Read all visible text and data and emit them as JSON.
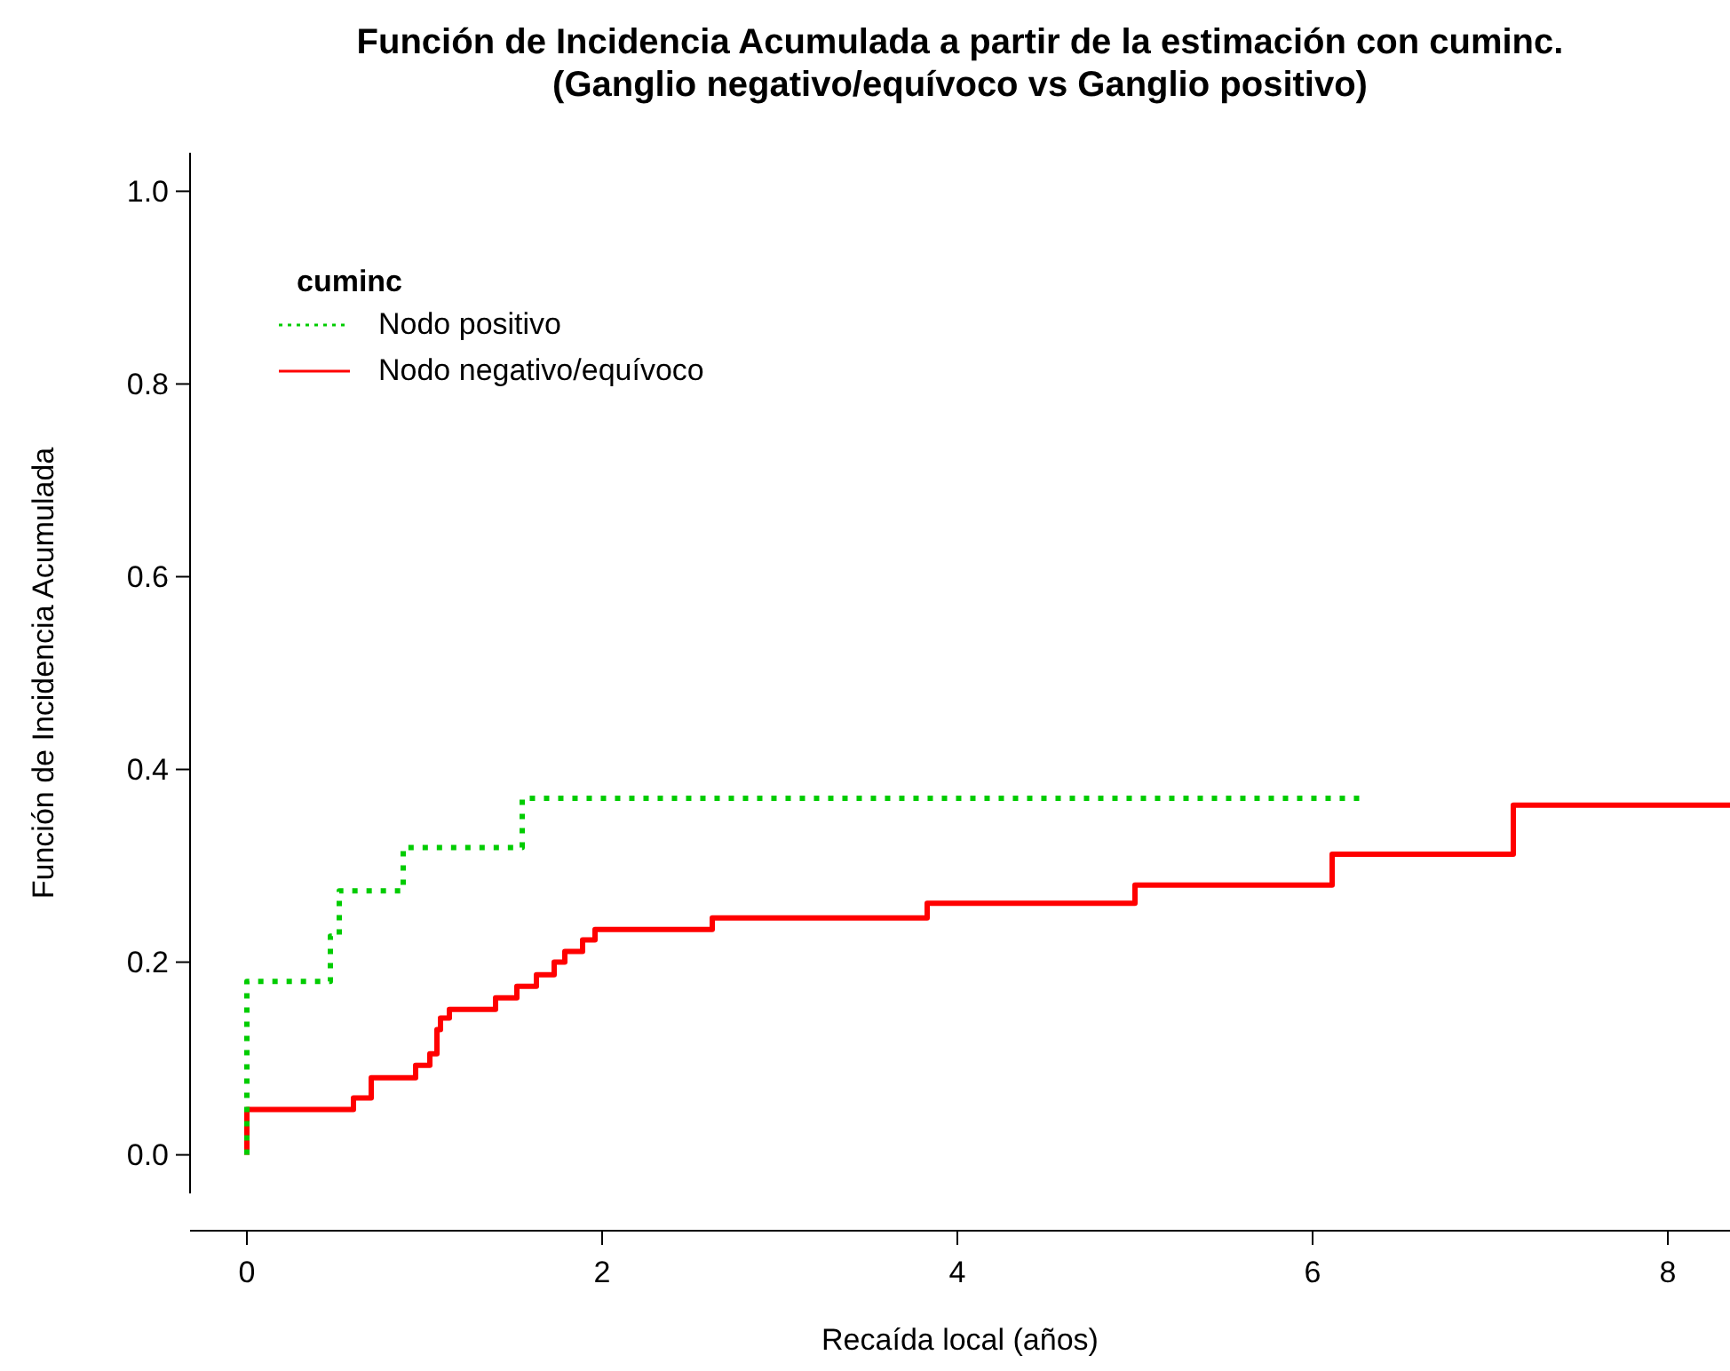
{
  "chart_data": {
    "type": "step",
    "title": "Función de Incidencia Acumulada a partir de la estimación con cuminc.\n(Ganglio negativo/equívoco vs Ganglio positivo)",
    "xlabel": "Recaída local (años)",
    "ylabel": "Función de Incidencia Acumulada",
    "legend_title": "cuminc",
    "legend": "top left",
    "grid": false,
    "xlim": [
      -0.32,
      8.35
    ],
    "ylim": [
      -0.04,
      1.04
    ],
    "xticks": [
      0,
      2,
      4,
      6,
      8
    ],
    "yticks": [
      {
        "value": 0,
        "label": "0.0"
      },
      {
        "value": 0.2,
        "label": "0.2"
      },
      {
        "value": 0.4,
        "label": "0.4"
      },
      {
        "value": 0.6,
        "label": "0.6"
      },
      {
        "value": 0.8,
        "label": "0.8"
      },
      {
        "value": 1,
        "label": "1.0"
      }
    ],
    "series": [
      {
        "name": "Nodo positivo",
        "color": "#00cc00",
        "line_style": "dotted",
        "x": [
          0,
          0,
          0.47,
          0.52,
          0.88,
          1.55,
          6.28
        ],
        "values": [
          0,
          0.18,
          0.227,
          0.274,
          0.319,
          0.37,
          0.37
        ]
      },
      {
        "name": "Nodo negativo/equívoco",
        "color": "#ff0000",
        "line_style": "solid",
        "x": [
          0,
          0,
          0.6,
          0.7,
          0.95,
          1.03,
          1.07,
          1.09,
          1.14,
          1.4,
          1.52,
          1.63,
          1.73,
          1.79,
          1.89,
          1.96,
          2.62,
          3.83,
          5.0,
          6.11,
          7.13,
          8.35
        ],
        "values": [
          0,
          0.047,
          0.059,
          0.08,
          0.093,
          0.105,
          0.13,
          0.142,
          0.151,
          0.163,
          0.175,
          0.187,
          0.2,
          0.211,
          0.223,
          0.234,
          0.246,
          0.261,
          0.28,
          0.312,
          0.363,
          0.363
        ]
      }
    ]
  }
}
